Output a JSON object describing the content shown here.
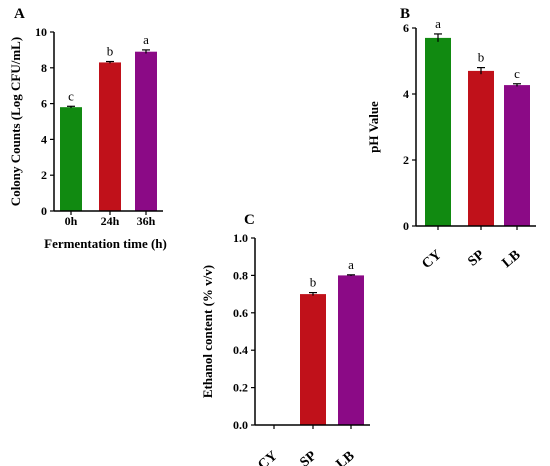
{
  "chart_data": [
    {
      "panel": "A",
      "type": "bar",
      "categories": [
        "0h",
        "24h",
        "36h"
      ],
      "values": [
        5.8,
        8.3,
        8.9
      ],
      "errors": [
        0.05,
        0.05,
        0.1
      ],
      "letters": [
        "c",
        "b",
        "a"
      ],
      "colors": [
        "#118a11",
        "#c0111a",
        "#8b0a86"
      ],
      "xlabel": "Fermentation time (h)",
      "ylabel": "Colony Counts (Log CFU/mL)",
      "ylim": [
        0,
        10
      ],
      "yticks": [
        "0",
        "2",
        "4",
        "6",
        "8",
        "10"
      ]
    },
    {
      "panel": "B",
      "type": "bar",
      "categories": [
        "CY",
        "SP",
        "LB"
      ],
      "values": [
        5.7,
        4.7,
        4.27
      ],
      "errors": [
        0.12,
        0.1,
        0.04
      ],
      "letters": [
        "a",
        "b",
        "c"
      ],
      "colors": [
        "#118a11",
        "#c0111a",
        "#8b0a86"
      ],
      "xlabel": "",
      "ylabel": "pH Value",
      "ylim": [
        0,
        6
      ],
      "yticks": [
        "0",
        "2",
        "4",
        "6"
      ]
    },
    {
      "panel": "C",
      "type": "bar",
      "categories": [
        "CY",
        "SP",
        "LB"
      ],
      "values": [
        0,
        0.7,
        0.8
      ],
      "errors": [
        0,
        0.008,
        0.003
      ],
      "letters": [
        "",
        "b",
        "a"
      ],
      "colors": [
        "#118a11",
        "#c0111a",
        "#8b0a86"
      ],
      "xlabel": "",
      "ylabel": "Ethanol content (% v/v)",
      "ylim": [
        0,
        1.0
      ],
      "yticks": [
        "0.0",
        "0.2",
        "0.4",
        "0.6",
        "0.8",
        "1.0"
      ]
    }
  ]
}
